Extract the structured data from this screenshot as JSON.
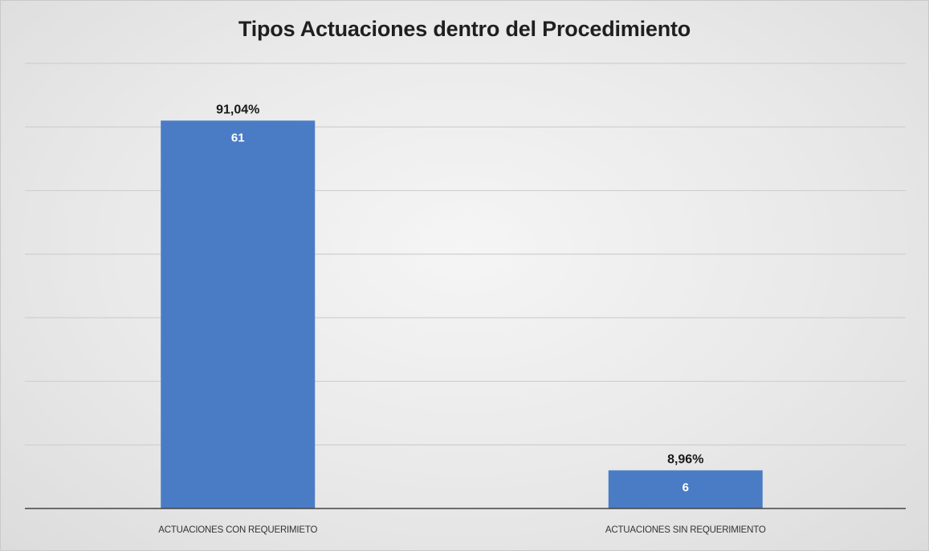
{
  "chart_data": {
    "type": "bar",
    "title": "Tipos Actuaciones dentro del Procedimiento",
    "categories": [
      "ACTUACIONES CON REQUERIMIETO",
      "ACTUACIONES SIN REQUERIMIENTO"
    ],
    "values": [
      61,
      6
    ],
    "percent_labels": [
      "91,04%",
      "8,96%"
    ],
    "xlabel": "",
    "ylabel": "",
    "ylim": [
      0,
      70
    ],
    "grid": true,
    "bar_color": "#4a7cc6"
  }
}
